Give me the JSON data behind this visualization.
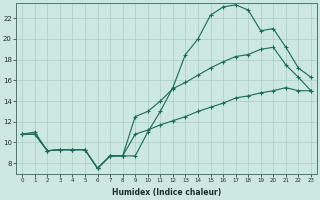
{
  "xlabel": "Humidex (Indice chaleur)",
  "bg_color": "#cce8e0",
  "grid_color": "#aaccc4",
  "line_color": "#1a6b58",
  "x_min": 0,
  "x_max": 23,
  "y_min": 7,
  "y_max": 23,
  "curve1_x": [
    0,
    1,
    2,
    3,
    4,
    5,
    6,
    7,
    8,
    9,
    10,
    11,
    12,
    13,
    14,
    15,
    16,
    17,
    18,
    19,
    20,
    21,
    22,
    23
  ],
  "curve1_y": [
    10.8,
    11.0,
    9.2,
    9.3,
    9.3,
    9.3,
    7.5,
    8.7,
    8.7,
    8.7,
    11.0,
    13.0,
    15.3,
    18.5,
    20.0,
    22.3,
    23.1,
    23.3,
    22.8,
    20.8,
    21.0,
    19.2,
    17.2,
    16.3
  ],
  "curve2_x": [
    0,
    1,
    2,
    3,
    4,
    5,
    6,
    7,
    8,
    9,
    10,
    11,
    12,
    13,
    14,
    15,
    16,
    17,
    18,
    19,
    20,
    21,
    22,
    23
  ],
  "curve2_y": [
    10.8,
    10.8,
    9.2,
    9.3,
    9.3,
    9.3,
    7.5,
    8.7,
    8.7,
    12.5,
    13.0,
    14.0,
    15.2,
    15.8,
    16.5,
    17.2,
    17.8,
    18.3,
    18.5,
    19.0,
    19.2,
    17.5,
    16.3,
    15.0
  ],
  "curve3_x": [
    0,
    1,
    2,
    3,
    4,
    5,
    6,
    7,
    8,
    9,
    10,
    11,
    12,
    13,
    14,
    15,
    16,
    17,
    18,
    19,
    20,
    21,
    22,
    23
  ],
  "curve3_y": [
    10.8,
    10.8,
    9.2,
    9.3,
    9.3,
    9.3,
    7.5,
    8.7,
    8.7,
    10.8,
    11.2,
    11.7,
    12.1,
    12.5,
    13.0,
    13.4,
    13.8,
    14.3,
    14.5,
    14.8,
    15.0,
    15.3,
    15.0,
    15.0
  ],
  "yticks": [
    8,
    10,
    12,
    14,
    16,
    18,
    20,
    22
  ],
  "xticks": [
    0,
    1,
    2,
    3,
    4,
    5,
    6,
    7,
    8,
    9,
    10,
    11,
    12,
    13,
    14,
    15,
    16,
    17,
    18,
    19,
    20,
    21,
    22,
    23
  ]
}
